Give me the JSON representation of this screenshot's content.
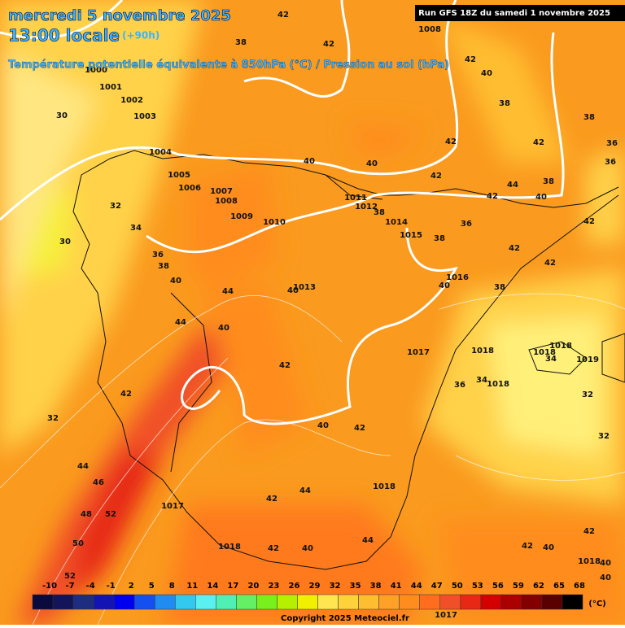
{
  "header": {
    "date": "mercredi 5 novembre 2025",
    "time": "13:00 locale",
    "lead": "(+90h)",
    "subtitle": "Température potentielle équivalente à 850hPa (°C) / Pression au sol (hPa)",
    "run": "Run GFS 18Z du samedi 1 novembre 2025"
  },
  "map_labels": [
    "42",
    "38",
    "42",
    "1008",
    "42",
    "40",
    "38",
    "38",
    "36",
    "36",
    "1000",
    "1001",
    "1002",
    "1003",
    "30",
    "1004",
    "1005",
    "1006",
    "1007",
    "1008",
    "1009",
    "1010",
    "40",
    "40",
    "42",
    "42",
    "42",
    "44",
    "38",
    "42",
    "40",
    "1011",
    "1012",
    "38",
    "1014",
    "1015",
    "38",
    "36",
    "42",
    "42",
    "42",
    "38",
    "1016",
    "40",
    "32",
    "34",
    "30",
    "36",
    "38",
    "40",
    "44",
    "40",
    "1013",
    "44",
    "40",
    "42",
    "1017",
    "1018",
    "1018",
    "1018",
    "34",
    "1019",
    "36",
    "34",
    "1018",
    "32",
    "32",
    "42",
    "32",
    "40",
    "42",
    "44",
    "46",
    "1018",
    "44",
    "42",
    "1017",
    "48",
    "52",
    "50",
    "44",
    "1018",
    "42",
    "40",
    "42",
    "40",
    "42",
    "40",
    "1018",
    "40",
    "52"
  ],
  "colorbar": {
    "unit": "(°C)",
    "ticks": [
      "-10",
      "-7",
      "-4",
      "-1",
      "2",
      "5",
      "8",
      "11",
      "14",
      "17",
      "20",
      "23",
      "26",
      "29",
      "32",
      "35",
      "38",
      "41",
      "44",
      "47",
      "50",
      "53",
      "56",
      "59",
      "62",
      "65",
      "68"
    ],
    "colors": [
      "#0a0a3c",
      "#14145a",
      "#1e2d80",
      "#1414b4",
      "#0000f0",
      "#1450f0",
      "#1e8cf0",
      "#32c8f0",
      "#5af0f0",
      "#50f0b4",
      "#64f064",
      "#78f01e",
      "#b4f000",
      "#f0f000",
      "#ffe650",
      "#ffd23c",
      "#ffbe32",
      "#ffa028",
      "#ff8c1e",
      "#ff6e1e",
      "#f05028",
      "#e62814",
      "#d20000",
      "#aa0000",
      "#820000",
      "#5a0000",
      "#000000"
    ]
  },
  "footer": {
    "copyright": "Copyright 2025 Meteociel.fr",
    "pressure": "1017"
  }
}
